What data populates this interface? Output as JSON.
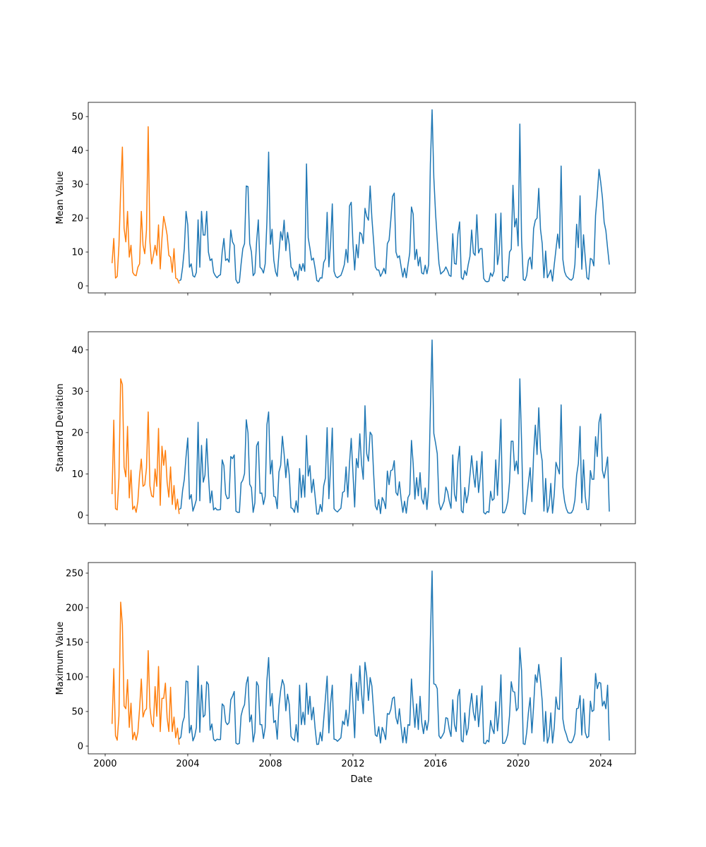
{
  "chart_data": {
    "type": "line",
    "xlabel": "Date",
    "xlim": [
      1999.18,
      2025.68
    ],
    "xticks": [
      2000,
      2004,
      2008,
      2012,
      2016,
      2020,
      2024
    ],
    "xtick_labels": [
      "2000",
      "2004",
      "2008",
      "2012",
      "2016",
      "2020",
      "2024"
    ],
    "colors": {
      "orange": "#ff7f0e",
      "blue": "#1f77b4"
    },
    "panels": [
      {
        "ylabel": "Mean Value",
        "ylim": [
          -2.08,
          54.2
        ],
        "yticks": [
          0,
          10,
          20,
          30,
          40,
          50
        ],
        "ytick_labels": [
          "0",
          "10",
          "20",
          "30",
          "40",
          "50"
        ],
        "series": [
          {
            "color": "#1f77b4",
            "start": "2003-08",
            "step": "month",
            "values": [
              1.5,
              1.8,
              5.5,
              11,
              22,
              18,
              5.5,
              6.5,
              3,
              2.6,
              4,
              19.5,
              5.5,
              22,
              15,
              15,
              22,
              10,
              7.5,
              8,
              4,
              3,
              2.4,
              3,
              3.3,
              10,
              14,
              7.5,
              8,
              7,
              16.5,
              13,
              12,
              1.8,
              0.8,
              1.1,
              6.5,
              11,
              12.5,
              29.5,
              29.3,
              12.5,
              10,
              3,
              3.8,
              13,
              19.5,
              5.5,
              5,
              3.8,
              6.5,
              19,
              39.5,
              12.3,
              16.7,
              7.6,
              4.2,
              2.8,
              9.7,
              16,
              13.5,
              19.4,
              10.4,
              15.8,
              12.2,
              5.6,
              4.9,
              2.8,
              4.3,
              1.7,
              6.4,
              4.5,
              6.6,
              4.3,
              36,
              14.2,
              11.1,
              7.6,
              8.2,
              5.2,
              1.6,
              1.25,
              2.4,
              2.3,
              6.9,
              8,
              21.7,
              5.6,
              12.5,
              24.2,
              4.3,
              2.8,
              2.4,
              2.8,
              3.1,
              4.5,
              6.3,
              10.8,
              6.9,
              23.6,
              24.7,
              12.5,
              4.7,
              12.2,
              8.3,
              15.8,
              15.3,
              12.5,
              22.9,
              20.5,
              19.4,
              29.5,
              20.1,
              13.2,
              5.6,
              4.7,
              4.7,
              2.8,
              3.8,
              5.2,
              3.6,
              12.5,
              13.5,
              19.4,
              26.4,
              27.4,
              10,
              8.3,
              8.9,
              5.6,
              2.6,
              5.2,
              2.4,
              6.3,
              9.7,
              23.3,
              21.2,
              7.8,
              10.8,
              5.9,
              8.5,
              3.8,
              3.5,
              6.1,
              3.6,
              6.3,
              36,
              52,
              32,
              21.5,
              13.5,
              6.6,
              3.5,
              4,
              4.5,
              5.6,
              4.5,
              3.1,
              2.8,
              15.4,
              6.6,
              6.4,
              15.3,
              18.9,
              2.4,
              1.9,
              4.5,
              3.1,
              6.3,
              8.7,
              16.5,
              9.7,
              9,
              21,
              9.7,
              11,
              11,
              2.2,
              1.4,
              1.2,
              1.4,
              3.8,
              2.8,
              4.3,
              21.3,
              6.3,
              9.7,
              21.5,
              1.7,
              1.4,
              2.8,
              2.4,
              10,
              10.8,
              29.7,
              17.4,
              19.9,
              11.8,
              47.8,
              13.9,
              1.9,
              1.6,
              3.1,
              7.6,
              8.5,
              5,
              16.9,
              19.4,
              20,
              28.8,
              16.7,
              12.5,
              2.4,
              10.3,
              2.4,
              3.5,
              4.7,
              1.4,
              6.3,
              10.8,
              15.3,
              11.1,
              35.4,
              7.8,
              4.2,
              2.9,
              2.4,
              1.9,
              1.7,
              2.4,
              6.3,
              18.2,
              11.3,
              26.6,
              4.9,
              15.1,
              8.3,
              2.4,
              1.9,
              8.1,
              7.8,
              5.9,
              20.8,
              26.7,
              34.4,
              30.6,
              26,
              18.8,
              16.3,
              11.1,
              6.3
            ]
          },
          {
            "color": "#ff7f0e",
            "start": "2000-05",
            "step": "month",
            "values": [
              6.7,
              14,
              2.3,
              2.8,
              12,
              28,
              41,
              17,
              13,
              22,
              8.5,
              12,
              4,
              3.2,
              3,
              5.5,
              6.5,
              22,
              12,
              9.5,
              16.5,
              47,
              13,
              6.5,
              9,
              12,
              9,
              18,
              5,
              14,
              20.5,
              18,
              15,
              9,
              8.5,
              4,
              11,
              2.3,
              2,
              0.7
            ]
          }
        ]
      },
      {
        "ylabel": "Standard Deviation",
        "ylim": [
          -2.05,
          44.4
        ],
        "yticks": [
          0,
          10,
          20,
          30,
          40
        ],
        "ytick_labels": [
          "0",
          "10",
          "20",
          "30",
          "40"
        ],
        "series": [
          {
            "color": "#1f77b4",
            "start": "2003-08",
            "step": "month",
            "values": [
              1.4,
              1.7,
              6,
              8.7,
              14.2,
              18.7,
              3.9,
              5,
              1,
              2.3,
              3.8,
              22.5,
              3.5,
              16.9,
              8,
              9.7,
              18.5,
              9.7,
              3,
              5.9,
              1.3,
              1.8,
              1.3,
              1.3,
              1.4,
              13.4,
              12,
              5.1,
              4,
              4.2,
              14.2,
              13.7,
              14.6,
              1,
              0.7,
              0.7,
              7.8,
              8.5,
              10.1,
              23.1,
              19.9,
              7.5,
              6.7,
              0.7,
              3,
              16.8,
              17.8,
              5.3,
              5.4,
              2.6,
              4.6,
              21.9,
              25,
              10,
              13.3,
              4.6,
              4.4,
              1.6,
              10.5,
              12.1,
              19.1,
              14.8,
              9.1,
              13.6,
              9.7,
              1.8,
              1.6,
              0.7,
              3.5,
              0.7,
              11.3,
              4.3,
              9.7,
              4.4,
              19.3,
              9.5,
              12,
              5.5,
              8.7,
              4.6,
              0.3,
              0.3,
              2.6,
              0.9,
              7.1,
              9,
              21.2,
              4,
              11.4,
              21.1,
              1.6,
              1.1,
              0.8,
              1.3,
              1.7,
              5.5,
              5.8,
              11.7,
              4.4,
              12.5,
              18.6,
              10.3,
              2,
              13.7,
              11.5,
              19.7,
              12.3,
              8.7,
              26.5,
              14.9,
              13.1,
              20.1,
              19.4,
              10.3,
              2.3,
              1.3,
              3.8,
              0.4,
              4.3,
              3.4,
              1.6,
              10.7,
              7.4,
              10.8,
              11,
              13.2,
              5.5,
              4.8,
              8.1,
              3.9,
              0.7,
              3.4,
              0.5,
              4.3,
              5.1,
              18.1,
              12.5,
              3.9,
              9.1,
              4.7,
              10.3,
              4,
              2.7,
              6.6,
              1.4,
              6.6,
              25.6,
              42.4,
              19.8,
              17.5,
              14.9,
              3,
              1.3,
              2.3,
              3.4,
              6.8,
              5.7,
              3.4,
              1.7,
              14.6,
              5.1,
              3.4,
              12.8,
              16.7,
              1.1,
              0.6,
              6.7,
              3,
              5.1,
              9.7,
              14.4,
              10,
              6.8,
              13.1,
              5.5,
              9.4,
              15.4,
              0.7,
              0.3,
              0.9,
              0.7,
              5.8,
              3.6,
              4,
              13.4,
              4.8,
              13.4,
              23.2,
              0.6,
              0.6,
              1.6,
              3.4,
              8,
              17.9,
              17.9,
              10.8,
              13.1,
              10,
              33,
              17.7,
              0.5,
              0.2,
              4,
              8,
              11.5,
              3.3,
              14.8,
              21.8,
              14.7,
              26,
              16,
              13.1,
              1,
              8.9,
              0.7,
              2.3,
              7.7,
              0.5,
              5.1,
              12.8,
              11.4,
              10,
              26.7,
              6.8,
              3.4,
              1.6,
              0.6,
              0.5,
              0.6,
              1.4,
              3.7,
              9.7,
              12.5,
              21.5,
              3,
              13.4,
              4.6,
              1.4,
              1.4,
              10.8,
              8.7,
              8.7,
              19,
              14.2,
              22.5,
              24.5,
              10.8,
              9,
              11.4,
              14.1,
              0.9
            ]
          },
          {
            "color": "#ff7f0e",
            "start": "2000-05",
            "step": "month",
            "values": [
              5.1,
              23,
              1.6,
              1.3,
              9.1,
              33,
              31.6,
              11.7,
              9.3,
              21.5,
              4.2,
              10.9,
              1.4,
              2.2,
              0.7,
              3.4,
              9.7,
              13.6,
              7,
              7.4,
              11.4,
              25,
              7.1,
              4.7,
              4.4,
              11.2,
              7,
              21,
              2.4,
              16.7,
              12.1,
              15.7,
              8,
              4.4,
              11.7,
              2.6,
              7.2,
              1.4,
              3.9,
              0.3
            ]
          }
        ]
      },
      {
        "ylabel": "Maximum Value",
        "ylim": [
          -11.2,
          265.3
        ],
        "yticks": [
          0,
          50,
          100,
          150,
          200,
          250
        ],
        "ytick_labels": [
          "0",
          "50",
          "100",
          "150",
          "200",
          "250"
        ],
        "series": [
          {
            "color": "#1f77b4",
            "start": "2003-08",
            "step": "month",
            "values": [
              10,
              13,
              34,
              42,
              94,
              93,
              19,
              30,
              7.5,
              14,
              27,
              116,
              20,
              88,
              42,
              45,
              93,
              89,
              23,
              32,
              10,
              7.5,
              10,
              9.5,
              9.5,
              61,
              58,
              35,
              31,
              34,
              67,
              72,
              79,
              4.4,
              2.7,
              4,
              44,
              54,
              60,
              90,
              100,
              35,
              45,
              6,
              20,
              93,
              87,
              31,
              31,
              11,
              27,
              95,
              128,
              58,
              76,
              34,
              37,
              10,
              58,
              81,
              96,
              88,
              51,
              75,
              60,
              14,
              10,
              8,
              31,
              6,
              88,
              31,
              49,
              31,
              91,
              46,
              72,
              38,
              56,
              26,
              2.4,
              2.7,
              20,
              7.5,
              38,
              69,
              101,
              19,
              62,
              88,
              10,
              9.5,
              7,
              9.5,
              12,
              36,
              31,
              52,
              29,
              52,
              104,
              61,
              12,
              92,
              66,
              116,
              76,
              47,
              121,
              102,
              66,
              99,
              87,
              51,
              16,
              14,
              28,
              4.4,
              27,
              20,
              9.5,
              47,
              46,
              53,
              69,
              71,
              41,
              32,
              54,
              28,
              5,
              27,
              4.4,
              31,
              30,
              97,
              60,
              27,
              61,
              24,
              72,
              34,
              18,
              37,
              23,
              38,
              155,
              253,
              90,
              89,
              83,
              15,
              11,
              15,
              20,
              41,
              40,
              24,
              14,
              67,
              31,
              21,
              72,
              82,
              8,
              6,
              48,
              16,
              26,
              57,
              76,
              49,
              37,
              73,
              28,
              54,
              87,
              4.4,
              3.4,
              8.5,
              6,
              37,
              25,
              18,
              64,
              22,
              48,
              103,
              4,
              4,
              8.5,
              17,
              44,
              93,
              79,
              78,
              51,
              55,
              142,
              109,
              3.4,
              2.4,
              20,
              49,
              70,
              19,
              58,
              103,
              92,
              118,
              94,
              65,
              7,
              50,
              4.4,
              14,
              48,
              4.4,
              27,
              71,
              54,
              53,
              128,
              39,
              24,
              17,
              8,
              5,
              5,
              9.5,
              18,
              54,
              55,
              73,
              16,
              68,
              20,
              12,
              14,
              65,
              50,
              52,
              105,
              83,
              92,
              91,
              58,
              65,
              54,
              88,
              8
            ]
          },
          {
            "color": "#ff7f0e",
            "start": "2000-05",
            "step": "month",
            "values": [
              32,
              112,
              15,
              8.5,
              44,
              208,
              175,
              58,
              54,
              96,
              27,
              62,
              9.5,
              20,
              8.5,
              20,
              54,
              97,
              42,
              51,
              54,
              138,
              56,
              33,
              28,
              86,
              43,
              115,
              21,
              69,
              69,
              91,
              41,
              21,
              85,
              21,
              42,
              12,
              26,
              2
            ]
          }
        ]
      }
    ]
  }
}
